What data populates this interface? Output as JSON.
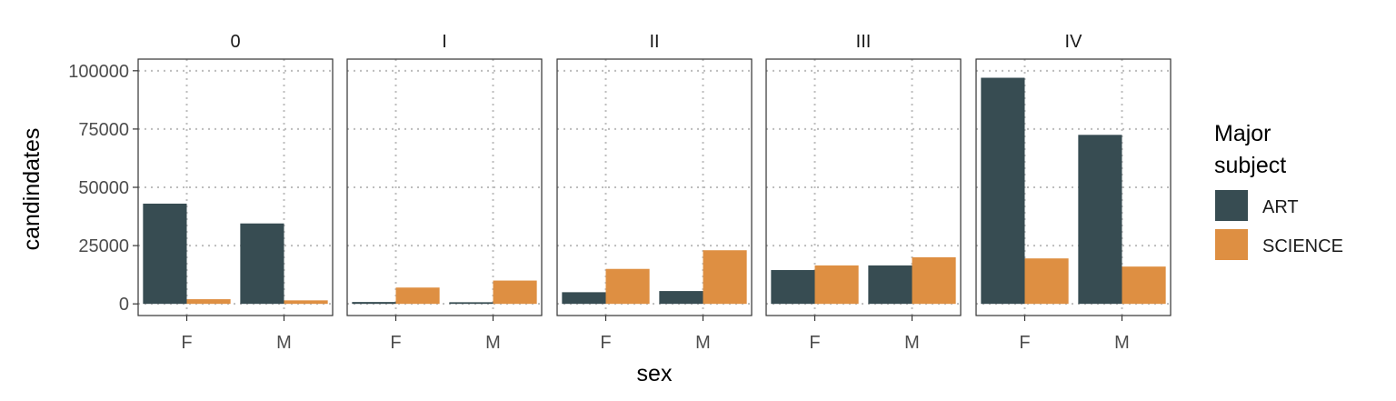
{
  "chart_data": {
    "type": "bar",
    "xlabel": "sex",
    "ylabel": "candindates",
    "ylim": [
      -5000,
      105000
    ],
    "yticks": [
      0,
      25000,
      50000,
      75000,
      100000
    ],
    "ytick_labels": [
      "0",
      "25000",
      "50000",
      "75000",
      "100000"
    ],
    "grid": "dotted major gridlines",
    "legend": {
      "title": [
        "Major",
        "subject"
      ],
      "placement": "right",
      "entries": [
        {
          "label": "ART",
          "color": "#374c52"
        },
        {
          "label": "SCIENCE",
          "color": "#de8f42"
        }
      ]
    },
    "categories": [
      "F",
      "M"
    ],
    "facets": [
      {
        "label": "0",
        "series": [
          {
            "name": "ART",
            "values": [
              43000,
              34500
            ]
          },
          {
            "name": "SCIENCE",
            "values": [
              2000,
              1500
            ]
          }
        ]
      },
      {
        "label": "I",
        "series": [
          {
            "name": "ART",
            "values": [
              800,
              700
            ]
          },
          {
            "name": "SCIENCE",
            "values": [
              7000,
              10000
            ]
          }
        ]
      },
      {
        "label": "II",
        "series": [
          {
            "name": "ART",
            "values": [
              5000,
              5500
            ]
          },
          {
            "name": "SCIENCE",
            "values": [
              15000,
              23000
            ]
          }
        ]
      },
      {
        "label": "III",
        "series": [
          {
            "name": "ART",
            "values": [
              14500,
              16500
            ]
          },
          {
            "name": "SCIENCE",
            "values": [
              16500,
              20000
            ]
          }
        ]
      },
      {
        "label": "IV",
        "series": [
          {
            "name": "ART",
            "values": [
              97000,
              72500
            ]
          },
          {
            "name": "SCIENCE",
            "values": [
              19500,
              16000
            ]
          }
        ]
      }
    ]
  }
}
